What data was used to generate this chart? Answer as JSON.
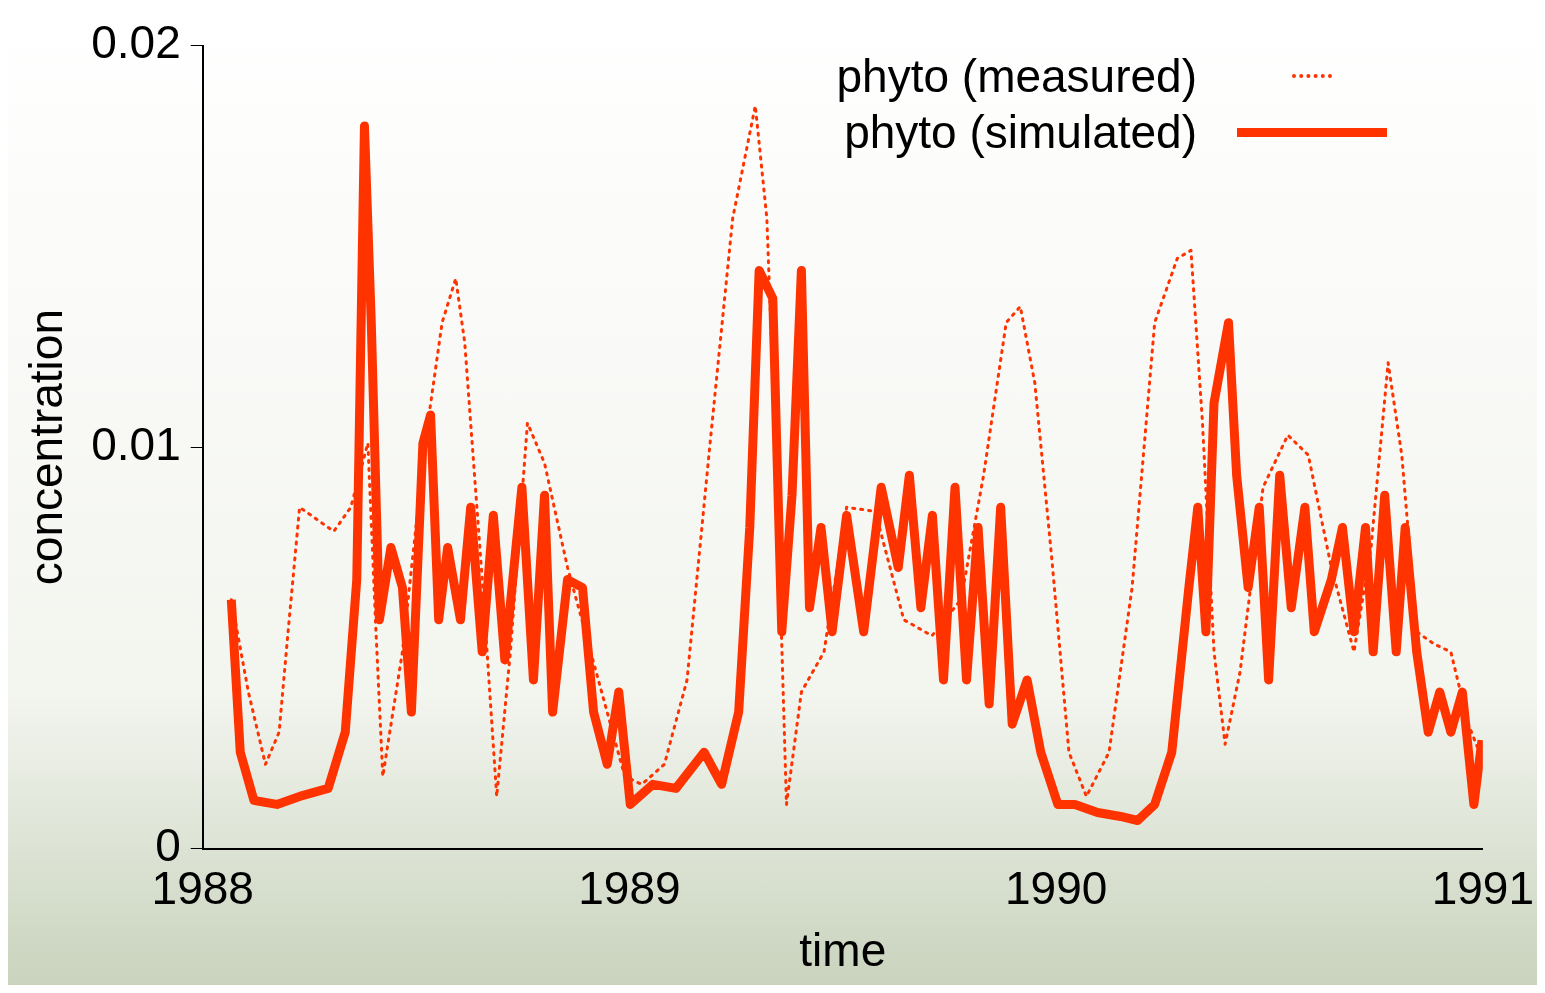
{
  "chart_data": {
    "type": "line",
    "xlabel": "time",
    "ylabel": "concentration",
    "xlim": [
      1988,
      1991
    ],
    "xticks": [
      1988,
      1989,
      1990,
      1991
    ],
    "ylim": [
      0,
      0.02
    ],
    "yticks": [
      0,
      0.01,
      0.02
    ],
    "grid": false,
    "legend": "top right",
    "marker": "none",
    "series": [
      {
        "name": "phyto (measured)",
        "color": "#ff3300",
        "line_style": "dotted",
        "x": [
          1988.067,
          1988.107,
          1988.147,
          1988.179,
          1988.2,
          1988.227,
          1988.254,
          1988.307,
          1988.347,
          1988.387,
          1988.406,
          1988.422,
          1988.468,
          1988.521,
          1988.561,
          1988.593,
          1988.614,
          1988.655,
          1988.689,
          1988.721,
          1988.761,
          1988.801,
          1988.855,
          1988.922,
          1988.989,
          1989.029,
          1989.082,
          1989.135,
          1989.189,
          1989.242,
          1989.295,
          1989.322,
          1989.349,
          1989.368,
          1989.403,
          1989.456,
          1989.509,
          1989.576,
          1989.643,
          1989.709,
          1989.777,
          1989.83,
          1989.883,
          1989.916,
          1989.95,
          1989.99,
          1990.03,
          1990.071,
          1990.124,
          1990.178,
          1990.231,
          1990.284,
          1990.316,
          1990.343,
          1990.37,
          1990.396,
          1990.431,
          1990.485,
          1990.543,
          1990.591,
          1990.645,
          1990.698,
          1990.738,
          1990.778,
          1990.81,
          1990.845,
          1990.885,
          1990.925,
          1990.966,
          1990.992
        ],
        "values": [
          0.0062,
          0.0039,
          0.0021,
          0.0029,
          0.0054,
          0.0085,
          0.0083,
          0.0079,
          0.0085,
          0.0101,
          0.0054,
          0.0018,
          0.0049,
          0.0101,
          0.0131,
          0.0142,
          0.0126,
          0.0067,
          0.0013,
          0.0049,
          0.0106,
          0.0096,
          0.007,
          0.0044,
          0.0018,
          0.0016,
          0.0021,
          0.0042,
          0.0101,
          0.0157,
          0.0185,
          0.0157,
          0.008,
          0.0011,
          0.0039,
          0.0049,
          0.0085,
          0.0084,
          0.0057,
          0.0053,
          0.0062,
          0.0093,
          0.0131,
          0.0135,
          0.0116,
          0.0072,
          0.0024,
          0.0013,
          0.0024,
          0.0065,
          0.0131,
          0.0147,
          0.0149,
          0.0106,
          0.0049,
          0.0026,
          0.0044,
          0.009,
          0.0103,
          0.0098,
          0.007,
          0.0049,
          0.0075,
          0.0121,
          0.0098,
          0.0054,
          0.0051,
          0.0049,
          0.0031,
          0.0024
        ]
      },
      {
        "name": "phyto (simulated)",
        "color": "#ff3300",
        "line_style": "solid",
        "x": [
          1988.067,
          1988.088,
          1988.12,
          1988.174,
          1988.227,
          1988.294,
          1988.334,
          1988.361,
          1988.379,
          1988.395,
          1988.414,
          1988.441,
          1988.468,
          1988.489,
          1988.516,
          1988.534,
          1988.553,
          1988.574,
          1988.604,
          1988.628,
          1988.655,
          1988.681,
          1988.708,
          1988.748,
          1988.775,
          1988.801,
          1988.82,
          1988.855,
          1988.89,
          1988.916,
          1988.948,
          1988.975,
          1989.002,
          1989.055,
          1989.109,
          1989.175,
          1989.216,
          1989.256,
          1989.282,
          1989.304,
          1989.336,
          1989.357,
          1989.381,
          1989.403,
          1989.422,
          1989.449,
          1989.475,
          1989.509,
          1989.549,
          1989.59,
          1989.63,
          1989.656,
          1989.683,
          1989.71,
          1989.736,
          1989.763,
          1989.79,
          1989.817,
          1989.843,
          1989.87,
          1989.897,
          1989.932,
          1989.964,
          1990.004,
          1990.044,
          1990.097,
          1990.151,
          1990.191,
          1990.231,
          1990.271,
          1990.311,
          1990.332,
          1990.351,
          1990.37,
          1990.404,
          1990.423,
          1990.45,
          1990.476,
          1990.498,
          1990.524,
          1990.551,
          1990.583,
          1990.605,
          1990.645,
          1990.671,
          1990.698,
          1990.725,
          1990.743,
          1990.77,
          1990.797,
          1990.818,
          1990.845,
          1990.872,
          1990.899,
          1990.925,
          1990.952,
          1990.979,
          1990.998
        ],
        "values": [
          0.0062,
          0.0024,
          0.0012,
          0.0011,
          0.0013,
          0.0015,
          0.0029,
          0.0067,
          0.018,
          0.0131,
          0.0057,
          0.0075,
          0.0065,
          0.0034,
          0.0101,
          0.0108,
          0.0057,
          0.0075,
          0.0057,
          0.0085,
          0.0049,
          0.0083,
          0.0047,
          0.009,
          0.0042,
          0.0088,
          0.0034,
          0.0067,
          0.0065,
          0.0034,
          0.0021,
          0.0039,
          0.0011,
          0.0016,
          0.0015,
          0.0024,
          0.0016,
          0.0034,
          0.008,
          0.0144,
          0.0137,
          0.0054,
          0.0088,
          0.0144,
          0.006,
          0.008,
          0.0054,
          0.0083,
          0.0054,
          0.009,
          0.007,
          0.0093,
          0.006,
          0.0083,
          0.0042,
          0.009,
          0.0042,
          0.008,
          0.0036,
          0.0085,
          0.0031,
          0.0042,
          0.0024,
          0.0011,
          0.0011,
          0.0009,
          0.0008,
          0.0007,
          0.0011,
          0.0024,
          0.0065,
          0.0085,
          0.0054,
          0.0111,
          0.0131,
          0.0093,
          0.0065,
          0.0085,
          0.0042,
          0.0093,
          0.006,
          0.0085,
          0.0054,
          0.0067,
          0.008,
          0.0054,
          0.008,
          0.0049,
          0.0088,
          0.0049,
          0.008,
          0.0049,
          0.0029,
          0.0039,
          0.0029,
          0.0039,
          0.0011,
          0.0027
        ]
      }
    ]
  }
}
